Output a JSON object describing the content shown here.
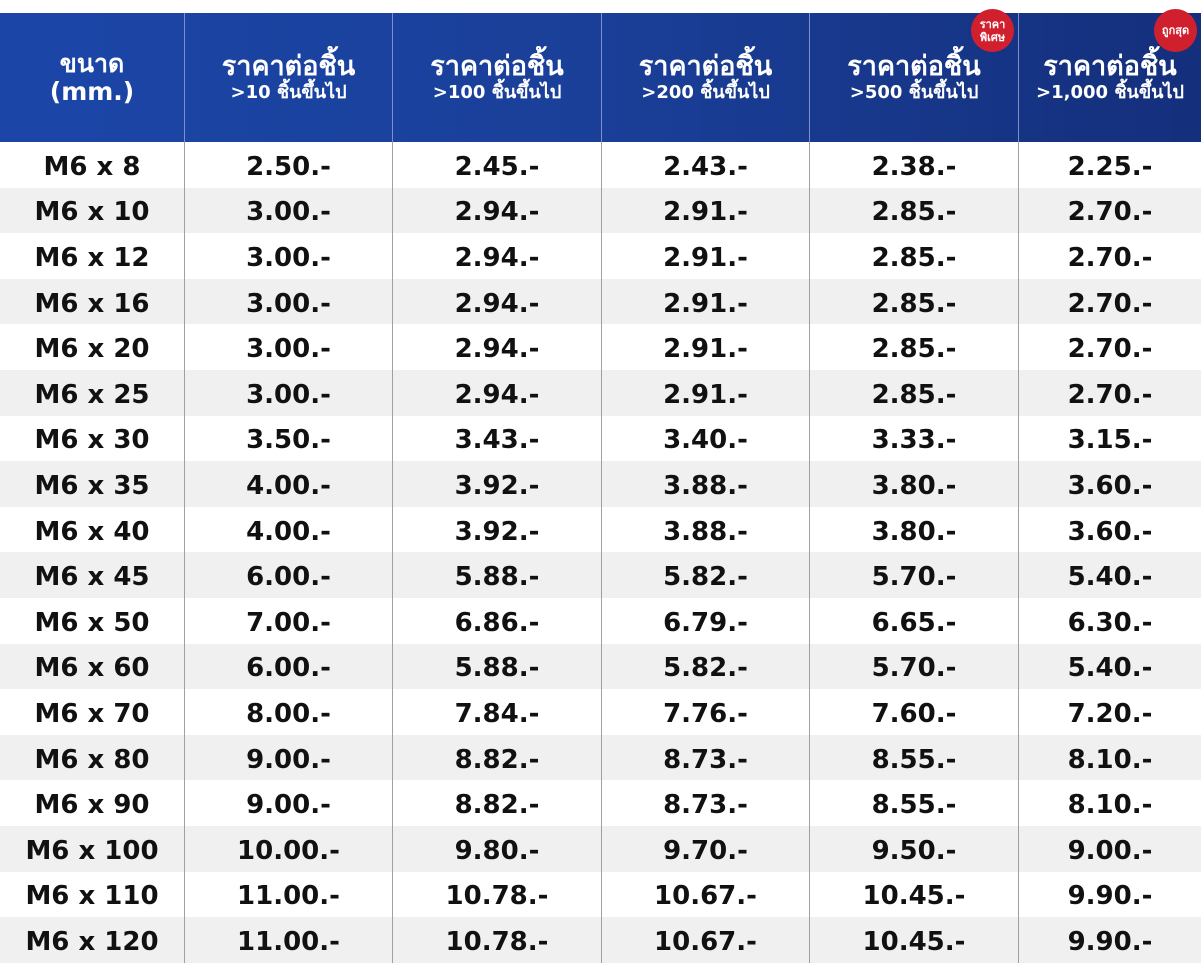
{
  "header": {
    "size": {
      "line1": "ขนาด",
      "line2": "(mm.)"
    },
    "columns": [
      {
        "title": "ราคาต่อชิ้น",
        "subtitle": ">10 ชิ้นขึ้นไป",
        "badge": null
      },
      {
        "title": "ราคาต่อชิ้น",
        "subtitle": ">100 ชิ้นขึ้นไป",
        "badge": null
      },
      {
        "title": "ราคาต่อชิ้น",
        "subtitle": ">200 ชิ้นขึ้นไป",
        "badge": null
      },
      {
        "title": "ราคาต่อชิ้น",
        "subtitle": ">500 ชิ้นขึ้นไป",
        "badge": {
          "line1": "ราคา",
          "line2": "พิเศษ"
        }
      },
      {
        "title": "ราคาต่อชิ้น",
        "subtitle": ">1,000 ชิ้นขึ้นไป",
        "badge": {
          "line1": "ถูกสุด",
          "line2": ""
        }
      }
    ]
  },
  "rows": [
    [
      "M6 x 8",
      "2.50.-",
      "2.45.-",
      "2.43.-",
      "2.38.-",
      "2.25.-"
    ],
    [
      "M6 x 10",
      "3.00.-",
      "2.94.-",
      "2.91.-",
      "2.85.-",
      "2.70.-"
    ],
    [
      "M6 x 12",
      "3.00.-",
      "2.94.-",
      "2.91.-",
      "2.85.-",
      "2.70.-"
    ],
    [
      "M6 x 16",
      "3.00.-",
      "2.94.-",
      "2.91.-",
      "2.85.-",
      "2.70.-"
    ],
    [
      "M6 x 20",
      "3.00.-",
      "2.94.-",
      "2.91.-",
      "2.85.-",
      "2.70.-"
    ],
    [
      "M6 x 25",
      "3.00.-",
      "2.94.-",
      "2.91.-",
      "2.85.-",
      "2.70.-"
    ],
    [
      "M6 x 30",
      "3.50.-",
      "3.43.-",
      "3.40.-",
      "3.33.-",
      "3.15.-"
    ],
    [
      "M6 x 35",
      "4.00.-",
      "3.92.-",
      "3.88.-",
      "3.80.-",
      "3.60.-"
    ],
    [
      "M6 x 40",
      "4.00.-",
      "3.92.-",
      "3.88.-",
      "3.80.-",
      "3.60.-"
    ],
    [
      "M6 x 45",
      "6.00.-",
      "5.88.-",
      "5.82.-",
      "5.70.-",
      "5.40.-"
    ],
    [
      "M6 x 50",
      "7.00.-",
      "6.86.-",
      "6.79.-",
      "6.65.-",
      "6.30.-"
    ],
    [
      "M6 x 60",
      "6.00.-",
      "5.88.-",
      "5.82.-",
      "5.70.-",
      "5.40.-"
    ],
    [
      "M6 x 70",
      "8.00.-",
      "7.84.-",
      "7.76.-",
      "7.60.-",
      "7.20.-"
    ],
    [
      "M6 x 80",
      "9.00.-",
      "8.82.-",
      "8.73.-",
      "8.55.-",
      "8.10.-"
    ],
    [
      "M6 x 90",
      "9.00.-",
      "8.82.-",
      "8.73.-",
      "8.55.-",
      "8.10.-"
    ],
    [
      "M6 x 100",
      "10.00.-",
      "9.80.-",
      "9.70.-",
      "9.50.-",
      "9.00.-"
    ],
    [
      "M6 x 110",
      "11.00.-",
      "10.78.-",
      "10.67.-",
      "10.45.-",
      "9.90.-"
    ],
    [
      "M6 x 120",
      "11.00.-",
      "10.78.-",
      "10.67.-",
      "10.45.-",
      "9.90.-"
    ]
  ],
  "colors": {
    "header_start": "#1b46a8",
    "header_end": "#142f7c",
    "badge": "#d0202e",
    "stripe": "#f0f0f0"
  }
}
